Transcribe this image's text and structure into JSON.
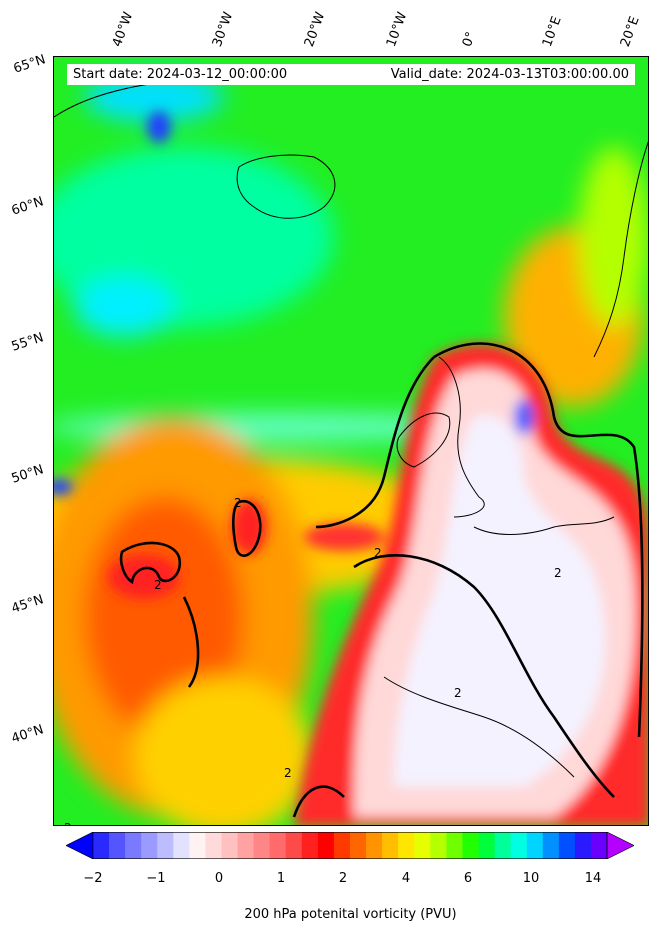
{
  "header": {
    "start_date": "Start date: 2024-03-12_00:00:00",
    "valid_date": "Valid_date: 2024-03-13T03:00:00.00"
  },
  "axes": {
    "lon_labels": [
      "40°W",
      "30°W",
      "20°W",
      "10°W",
      "0°",
      "10°E",
      "20°E"
    ],
    "lat_labels": [
      "65°N",
      "60°N",
      "55°N",
      "50°N",
      "45°N",
      "40°N"
    ]
  },
  "map": {
    "variable": "200 hPa potenital vorticity (PVU)",
    "contour_label": "2",
    "contour_level_pvu": 2
  },
  "colorbar": {
    "title": "200 hPa potenital vorticity (PVU)",
    "ticks": [
      "−2",
      "−1",
      "0",
      "1",
      "2",
      "4",
      "6",
      "10",
      "14"
    ],
    "colors": [
      "#0000ff",
      "#2a2aff",
      "#5555ff",
      "#7a7aff",
      "#9a9aff",
      "#bcbcff",
      "#e2e2ff",
      "#fff2f2",
      "#ffdada",
      "#ffc0c0",
      "#ffa2a2",
      "#ff8686",
      "#ff6a6a",
      "#ff4a4a",
      "#ff2020",
      "#ff0000",
      "#ff3a00",
      "#ff6600",
      "#ff9400",
      "#ffbe00",
      "#ffe600",
      "#e6ff00",
      "#b4ff00",
      "#70ff00",
      "#22ff00",
      "#00ff3a",
      "#00ff9a",
      "#00ffe0",
      "#00d4ff",
      "#0090ff",
      "#0050ff",
      "#2a1aff",
      "#6a00ff",
      "#b400ff"
    ],
    "extend": "both"
  }
}
